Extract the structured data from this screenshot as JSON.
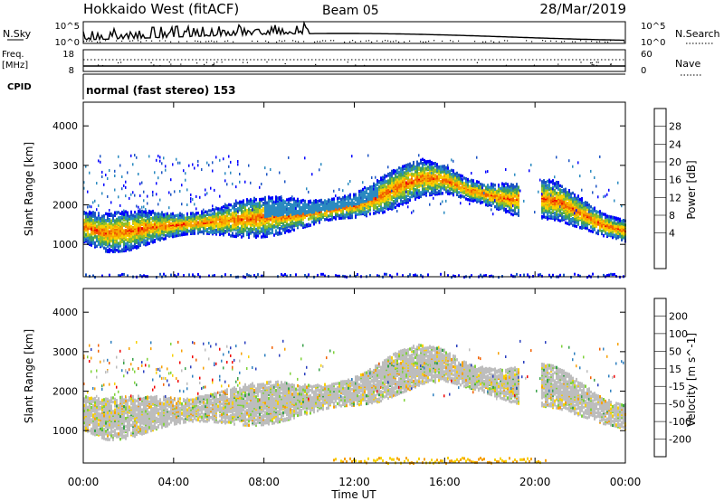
{
  "header": {
    "station": "Hokkaido West (fitACF)",
    "beam": "Beam 05",
    "date": "28/Mar/2019"
  },
  "noise_panel": {
    "left_label": "N.Sky",
    "left_ticks": [
      "10^5",
      "10^0"
    ],
    "right_label": "N.Search",
    "right_ticks": [
      "10^5",
      "10^0"
    ]
  },
  "freq_panel": {
    "left_label_1": "Freq.",
    "left_label_2": "[MHz]",
    "left_ticks": [
      "18",
      "8"
    ],
    "right_label": "Nave",
    "right_ticks": [
      "60",
      "0"
    ]
  },
  "cpid_panel": {
    "label": "CPID",
    "value": "normal (fast stereo) 153"
  },
  "chart_data": [
    {
      "type": "heatmap",
      "name": "power",
      "ylabel": "Slant Range [km]",
      "yticks": [
        1000,
        2000,
        3000,
        4000
      ],
      "ylim": [
        180,
        4600
      ],
      "colorbar_label": "Power [dB]",
      "colorbar_ticks": [
        "28",
        "24",
        "20",
        "16",
        "12",
        "8",
        "4"
      ],
      "colorbar_colors": [
        "#0000ff",
        "#1c54c4",
        "#2a8ac0",
        "#3f9e5e",
        "#8fc02a",
        "#f8d000",
        "#f7a400",
        "#f26100",
        "#f00000"
      ],
      "echo_band_center_km": [
        [
          0,
          1450
        ],
        [
          1,
          1300
        ],
        [
          2,
          1350
        ],
        [
          3,
          1450
        ],
        [
          4,
          1500
        ],
        [
          5,
          1550
        ],
        [
          6,
          1600
        ],
        [
          7,
          1650
        ],
        [
          8,
          1700
        ],
        [
          9,
          1750
        ],
        [
          10,
          1800
        ],
        [
          11,
          1900
        ],
        [
          12,
          2000
        ],
        [
          13,
          2200
        ],
        [
          14,
          2500
        ],
        [
          15,
          2700
        ],
        [
          16,
          2650
        ],
        [
          17,
          2400
        ],
        [
          18,
          2250
        ],
        [
          19,
          2150
        ],
        [
          20,
          2200
        ],
        [
          21,
          2100
        ],
        [
          22,
          1800
        ],
        [
          23,
          1500
        ],
        [
          24,
          1350
        ]
      ]
    },
    {
      "type": "heatmap",
      "name": "velocity",
      "ylabel": "Slant Range [km]",
      "xlabel": "Time UT",
      "yticks": [
        1000,
        2000,
        3000,
        4000
      ],
      "ylim": [
        180,
        4600
      ],
      "xticks": [
        "00:00",
        "04:00",
        "08:00",
        "12:00",
        "16:00",
        "20:00",
        "00:00"
      ],
      "colorbar_label": "Velocity [m s^-1]",
      "colorbar_ticks": [
        "200",
        "100",
        "50",
        "15",
        "-15",
        "-50",
        "-100",
        "-200"
      ],
      "colorbar_colors": [
        "#2a3fbf",
        "#2e7fbf",
        "#3aa24a",
        "#7fd23a",
        "#bdbdbd",
        "#f7d000",
        "#f7a000",
        "#f26000",
        "#f00000"
      ]
    }
  ]
}
